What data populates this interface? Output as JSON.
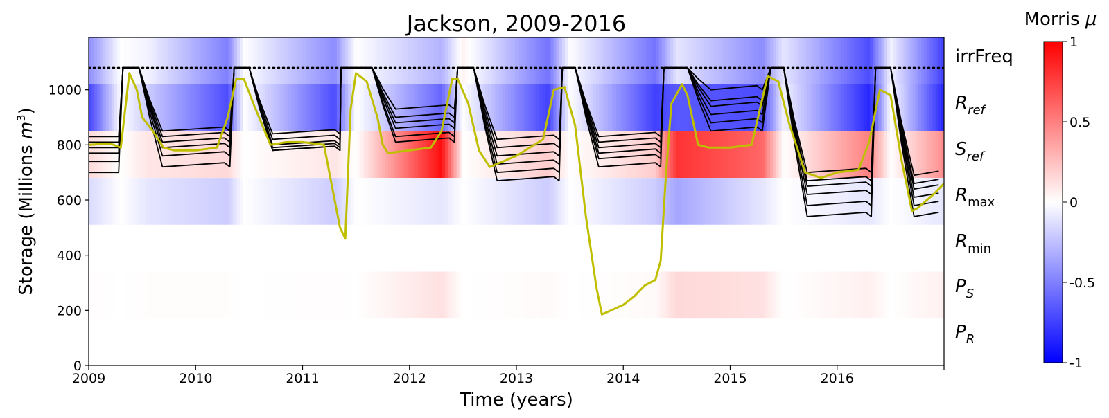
{
  "chart_data": {
    "type": "heatmap",
    "title": "Jackson, 2009-2016",
    "xlabel": "Time (years)",
    "ylabel_main": "Storage (Millions ",
    "ylabel_unit": "m",
    "ylabel_exp": "3",
    "ylabel_close": ")",
    "xlim": [
      2009,
      2017
    ],
    "ylim": [
      0,
      1190
    ],
    "x_ticks": [
      2009,
      2010,
      2011,
      2012,
      2013,
      2014,
      2015,
      2016
    ],
    "x_tick_labels": [
      "2009",
      "2010",
      "2011",
      "2012",
      "2013",
      "2014",
      "2015",
      "2016"
    ],
    "y_ticks": [
      0,
      200,
      400,
      600,
      800,
      1000
    ],
    "y_tick_labels": [
      "0",
      "200",
      "400",
      "600",
      "800",
      "1000"
    ],
    "capacity_line": 1080,
    "parameters": [
      {
        "key": "irrFreq",
        "main": "irrFreq",
        "sub": "",
        "band": [
          1020,
          1190
        ]
      },
      {
        "key": "R_ref",
        "main": "R",
        "sub": "ref",
        "band": [
          850,
          1020
        ]
      },
      {
        "key": "S_ref",
        "main": "S",
        "sub": "ref",
        "band": [
          680,
          850
        ]
      },
      {
        "key": "R_max",
        "main": "R",
        "sub": "max",
        "band": [
          510,
          680
        ]
      },
      {
        "key": "R_min",
        "main": "R",
        "sub": "min",
        "band": [
          340,
          510
        ]
      },
      {
        "key": "P_S",
        "main": "P",
        "sub": "S",
        "band": [
          170,
          340
        ]
      },
      {
        "key": "P_R",
        "main": "P",
        "sub": "R",
        "band": [
          0,
          170
        ]
      }
    ],
    "sensitivity_mu": {
      "note_time_breaks": [
        2009.0,
        2009.3,
        2009.55,
        2010.3,
        2010.45,
        2011.3,
        2011.5,
        2012.3,
        2012.5,
        2013.3,
        2013.5,
        2014.3,
        2014.5,
        2015.3,
        2015.5,
        2016.3,
        2016.5,
        2017.0
      ],
      "irrFreq": [
        -0.45,
        0.0,
        -0.05,
        -0.5,
        0.0,
        -0.45,
        0.0,
        -0.3,
        0.05,
        -0.55,
        0.0,
        -0.55,
        -0.1,
        -0.45,
        -0.1,
        -0.7,
        -0.05,
        -0.75
      ],
      "R_ref": [
        -0.75,
        0.0,
        -0.2,
        -0.7,
        0.0,
        -0.7,
        0.0,
        -0.6,
        0.0,
        -0.75,
        0.0,
        -0.75,
        -0.65,
        -0.7,
        -0.05,
        -0.85,
        0.0,
        -0.85
      ],
      "S_ref": [
        0.15,
        0.0,
        0.1,
        0.15,
        0.0,
        0.1,
        0.0,
        0.95,
        0.0,
        0.2,
        0.0,
        0.2,
        0.8,
        0.6,
        0.0,
        0.5,
        0.0,
        0.45
      ],
      "R_max": [
        -0.15,
        0.0,
        -0.1,
        -0.2,
        0.0,
        -0.2,
        0.0,
        -0.1,
        0.0,
        -0.2,
        0.0,
        -0.2,
        -0.35,
        -0.1,
        0.0,
        -0.1,
        0.0,
        -0.1
      ],
      "R_min": [
        0.0,
        0.0,
        0.0,
        0.0,
        0.0,
        0.0,
        0.0,
        0.0,
        0.0,
        0.0,
        0.0,
        0.0,
        0.0,
        0.0,
        0.0,
        0.0,
        0.0,
        0.0
      ],
      "P_S": [
        0.01,
        0.0,
        0.01,
        0.01,
        0.0,
        0.01,
        0.0,
        0.12,
        0.0,
        0.02,
        0.0,
        0.02,
        0.15,
        0.12,
        0.0,
        0.06,
        0.0,
        0.06
      ],
      "P_R": [
        0.0,
        0.0,
        0.0,
        0.0,
        0.0,
        0.0,
        0.0,
        0.0,
        0.0,
        0.0,
        0.0,
        0.0,
        0.0,
        0.0,
        0.0,
        0.0,
        0.0,
        0.0
      ]
    },
    "observed_series": {
      "color": "#bfbf00",
      "x": [
        2009.0,
        2009.2,
        2009.3,
        2009.38,
        2009.45,
        2009.5,
        2009.6,
        2009.7,
        2009.8,
        2010.0,
        2010.2,
        2010.3,
        2010.38,
        2010.45,
        2010.55,
        2010.7,
        2010.85,
        2011.0,
        2011.2,
        2011.3,
        2011.35,
        2011.4,
        2011.45,
        2011.5,
        2011.6,
        2011.7,
        2011.75,
        2011.8,
        2012.0,
        2012.2,
        2012.3,
        2012.4,
        2012.45,
        2012.55,
        2012.65,
        2012.75,
        2013.0,
        2013.25,
        2013.35,
        2013.45,
        2013.55,
        2013.65,
        2013.75,
        2013.8,
        2014.0,
        2014.1,
        2014.2,
        2014.3,
        2014.35,
        2014.4,
        2014.45,
        2014.55,
        2014.6,
        2014.7,
        2014.8,
        2015.0,
        2015.2,
        2015.35,
        2015.45,
        2015.55,
        2015.7,
        2015.85,
        2016.0,
        2016.2,
        2016.3,
        2016.4,
        2016.5,
        2016.6,
        2016.7,
        2016.75,
        2016.9,
        2017.0
      ],
      "y": [
        800,
        805,
        790,
        1060,
        1000,
        900,
        850,
        790,
        780,
        780,
        790,
        900,
        1040,
        1040,
        940,
        800,
        810,
        810,
        800,
        600,
        500,
        460,
        930,
        1060,
        1030,
        900,
        800,
        770,
        780,
        790,
        850,
        1040,
        1040,
        950,
        780,
        720,
        760,
        820,
        1000,
        1010,
        870,
        540,
        280,
        185,
        220,
        250,
        290,
        310,
        380,
        700,
        950,
        1020,
        980,
        800,
        790,
        790,
        800,
        1050,
        1030,
        880,
        700,
        680,
        700,
        710,
        810,
        1000,
        980,
        750,
        560,
        570,
        620,
        660
      ]
    },
    "simulated_series": {
      "color": "#000000",
      "capacity": 1080,
      "refill_events": [
        {
          "rise_start": 2009.28,
          "peak_start": 2009.32,
          "peak_end": 2009.47,
          "valleys": [
            850,
            830,
            810,
            790,
            760,
            720
          ],
          "next": 2010.32
        },
        {
          "rise_start": 2010.32,
          "peak_start": 2010.36,
          "peak_end": 2010.5,
          "valleys": [
            840,
            820,
            800,
            790,
            780,
            780
          ],
          "next": 2011.35
        },
        {
          "rise_start": 2011.35,
          "peak_start": 2011.36,
          "peak_end": 2011.65,
          "valleys": [
            930,
            900,
            880,
            860,
            830,
            810
          ],
          "next": 2012.42
        },
        {
          "rise_start": 2012.42,
          "peak_start": 2012.45,
          "peak_end": 2012.6,
          "valleys": [
            820,
            790,
            760,
            730,
            700,
            670
          ],
          "next": 2013.4
        },
        {
          "rise_start": 2013.4,
          "peak_start": 2013.43,
          "peak_end": 2013.55,
          "valleys": [
            830,
            810,
            790,
            770,
            750,
            720
          ],
          "next": 2014.35
        },
        {
          "rise_start": 2014.35,
          "peak_start": 2014.38,
          "peak_end": 2014.6,
          "valleys": [
            1000,
            960,
            940,
            910,
            880,
            850
          ],
          "next": 2015.3
        },
        {
          "rise_start": 2015.3,
          "peak_start": 2015.38,
          "peak_end": 2015.5,
          "valleys": [
            700,
            670,
            650,
            620,
            580,
            540
          ],
          "next": 2016.32
        },
        {
          "rise_start": 2016.32,
          "peak_start": 2016.36,
          "peak_end": 2016.5,
          "valleys": [
            690,
            660,
            640,
            610,
            580,
            540
          ],
          "next": 2017.0
        }
      ]
    },
    "colorbar": {
      "title_text": "Morris ",
      "title_symbol": "μ",
      "range": [
        -1,
        1
      ],
      "ticks": [
        1,
        0.5,
        0,
        -0.5,
        -1
      ],
      "tick_labels": [
        "1",
        "0.5",
        "0",
        "-0.5",
        "-1"
      ],
      "low_color": "#0000ff",
      "mid_color": "#ffffff",
      "high_color": "#ff0000"
    }
  }
}
